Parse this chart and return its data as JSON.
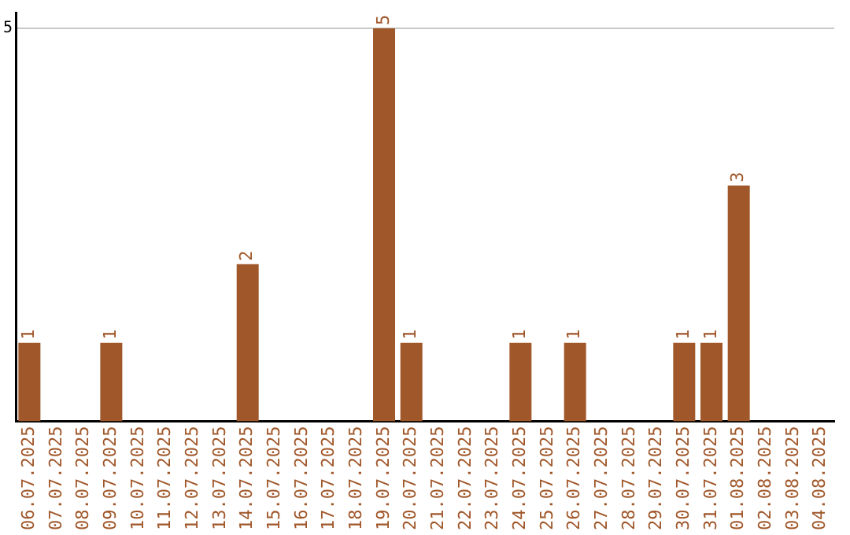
{
  "chart_data": {
    "type": "bar",
    "categories": [
      "06.07.2025",
      "07.07.2025",
      "08.07.2025",
      "09.07.2025",
      "10.07.2025",
      "11.07.2025",
      "12.07.2025",
      "13.07.2025",
      "14.07.2025",
      "15.07.2025",
      "16.07.2025",
      "17.07.2025",
      "18.07.2025",
      "19.07.2025",
      "20.07.2025",
      "21.07.2025",
      "22.07.2025",
      "23.07.2025",
      "24.07.2025",
      "25.07.2025",
      "26.07.2025",
      "27.07.2025",
      "28.07.2025",
      "29.07.2025",
      "30.07.2025",
      "31.07.2025",
      "01.08.2025",
      "02.08.2025",
      "03.08.2025",
      "04.08.2025"
    ],
    "values": [
      1,
      0,
      0,
      1,
      0,
      0,
      0,
      0,
      2,
      0,
      0,
      0,
      0,
      5,
      1,
      0,
      0,
      0,
      1,
      0,
      1,
      0,
      0,
      0,
      1,
      1,
      3,
      0,
      0,
      0
    ],
    "value_labels": [
      "1",
      null,
      null,
      "1",
      null,
      null,
      null,
      null,
      "2",
      null,
      null,
      null,
      null,
      "5",
      "1",
      null,
      null,
      null,
      "1",
      null,
      "1",
      null,
      null,
      null,
      "1",
      "1",
      "3",
      null,
      null,
      null
    ],
    "color": "#a0572a",
    "ylim": [
      0,
      5.2
    ],
    "yticks": [
      5
    ],
    "grid": "y",
    "legend": false
  }
}
